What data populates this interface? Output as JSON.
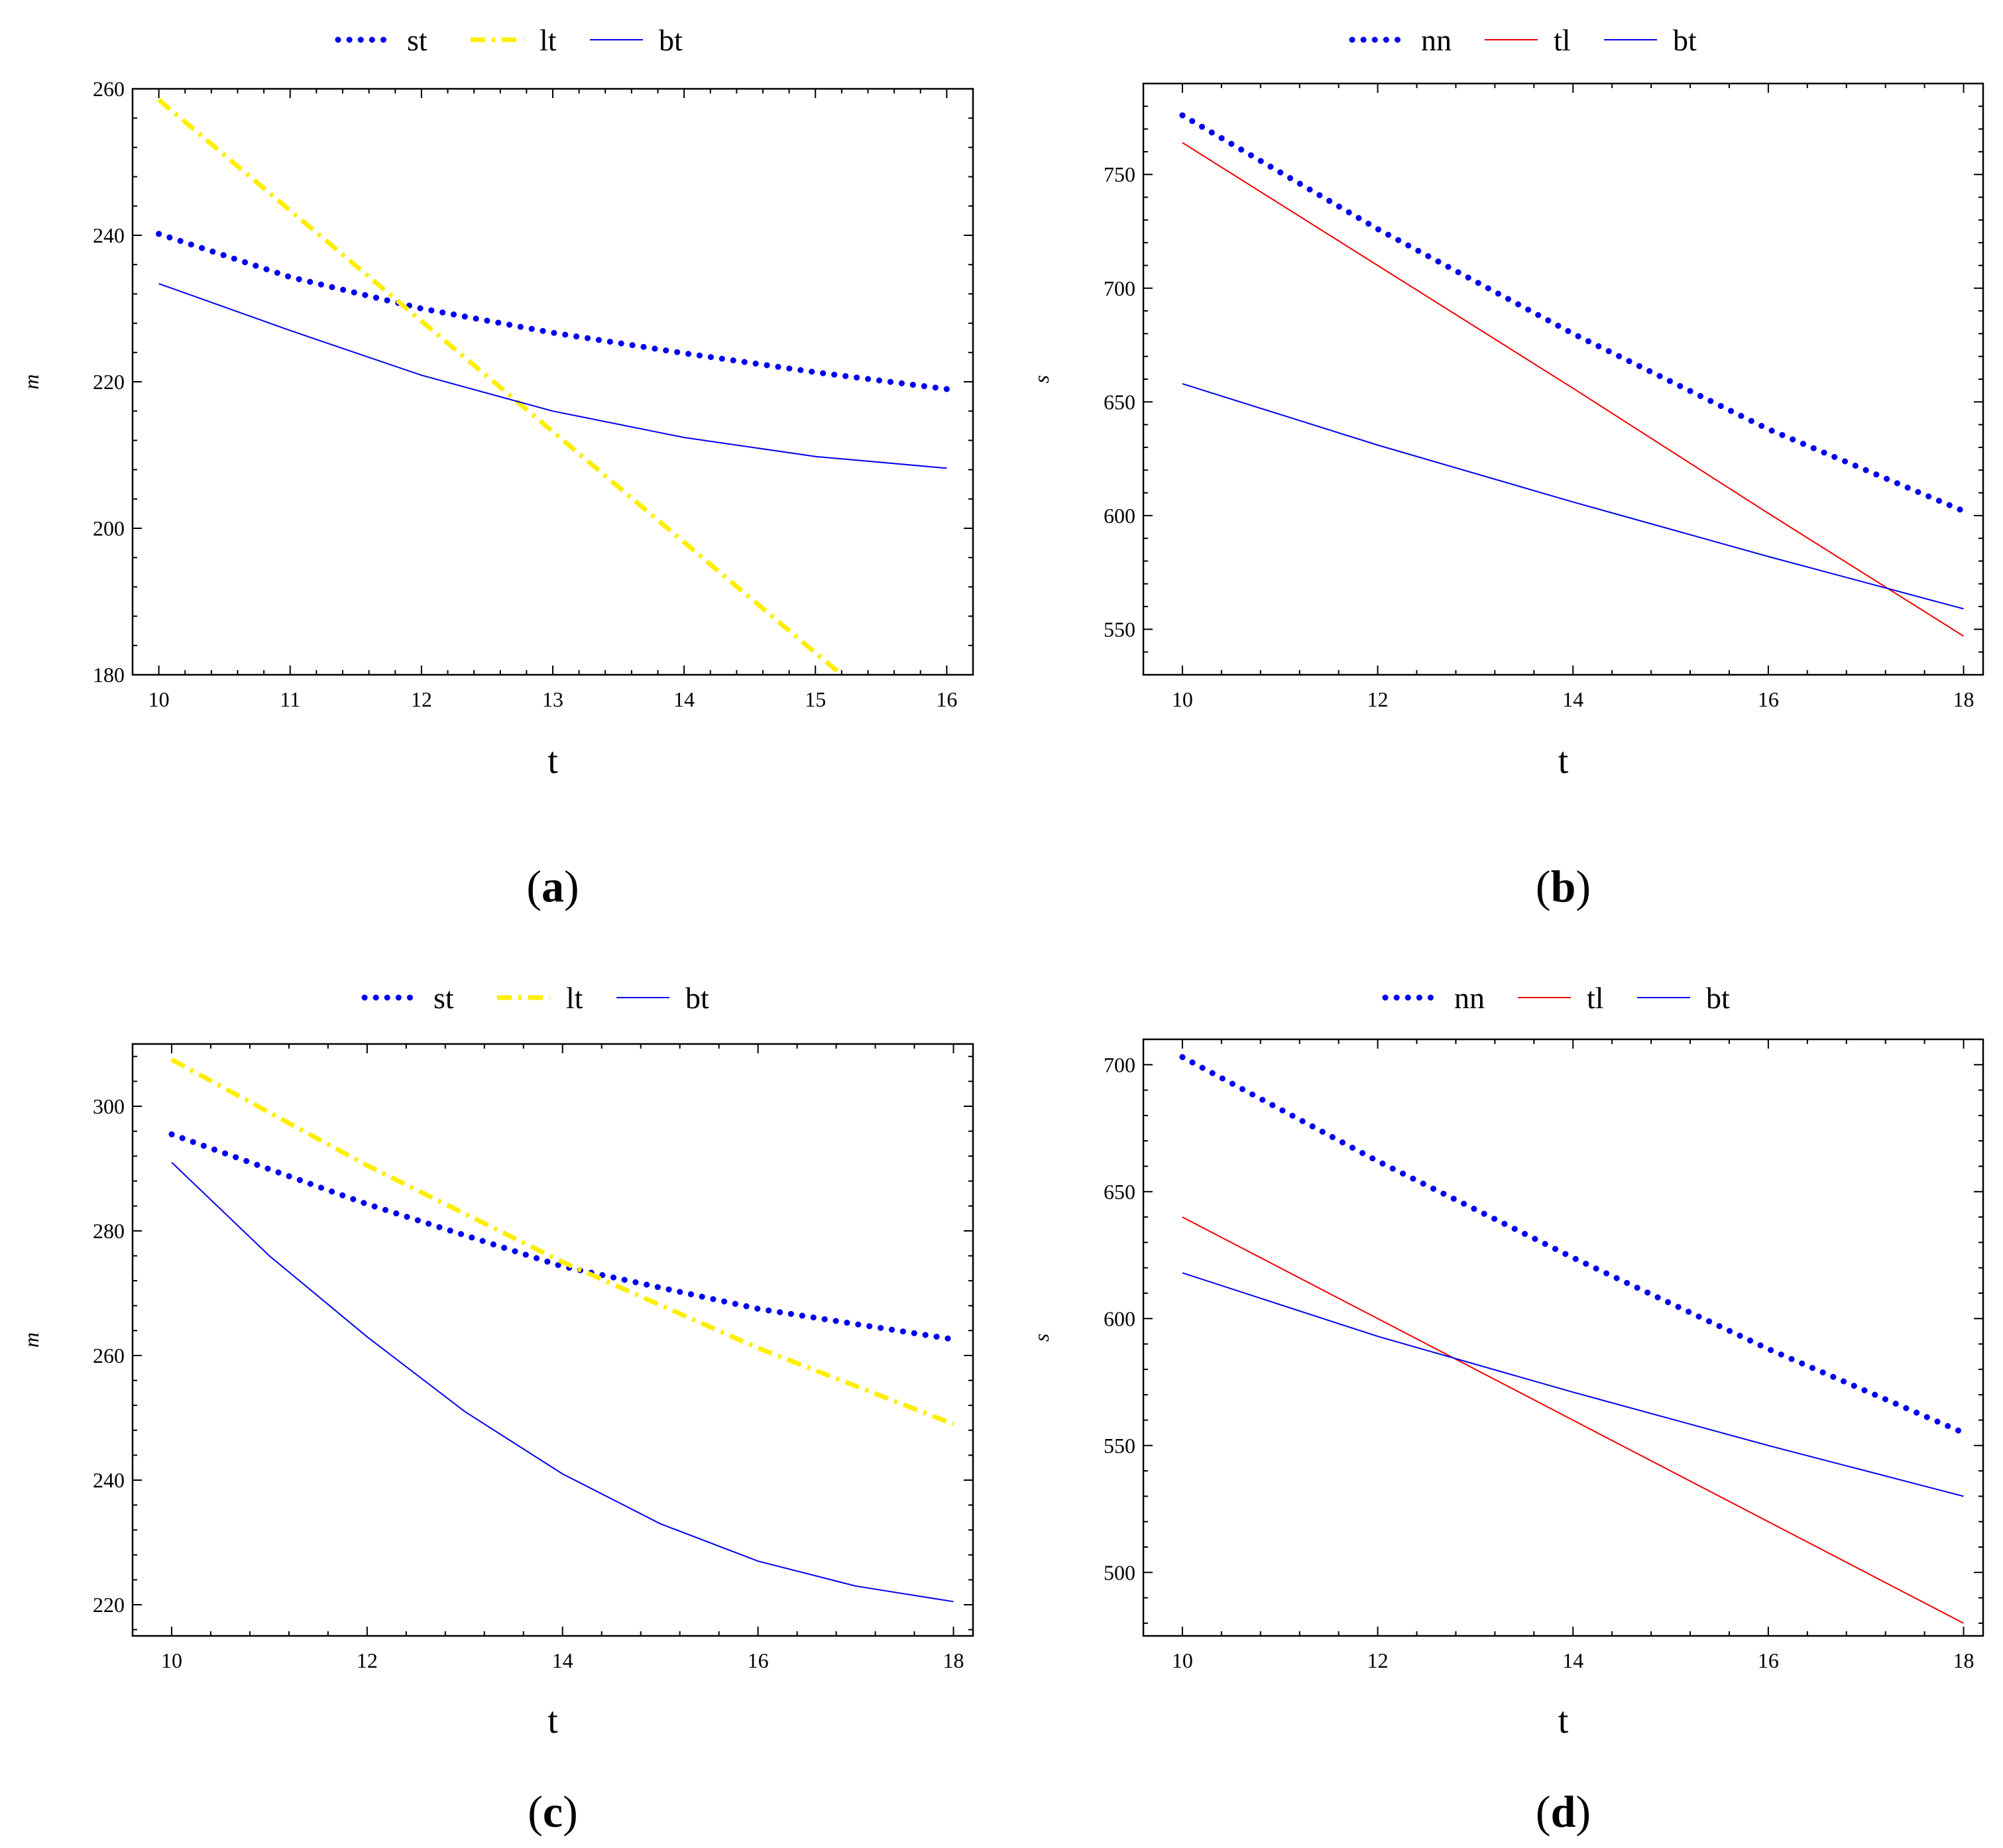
{
  "figure": {
    "panels": [
      {
        "id": "a",
        "caption_letter": "a",
        "xlabel": "t",
        "ylabel": "m",
        "xlim": [
          9.8,
          16.2
        ],
        "ylim": [
          180,
          260
        ],
        "xticks": [
          10,
          11,
          12,
          13,
          14,
          15,
          16
        ],
        "yticks": [
          180,
          200,
          220,
          240,
          260
        ],
        "legend": [
          "st",
          "lt",
          "bt"
        ],
        "series": [
          {
            "name": "st",
            "style": "dotted",
            "color": "#0000ee",
            "x": [
              10,
              11,
              12,
              13,
              14,
              15,
              16
            ],
            "values": [
              240.2,
              234.3,
              230.0,
              226.7,
              223.9,
              221.3,
              219.0
            ]
          },
          {
            "name": "lt",
            "style": "dashdot",
            "color": "#ffee00",
            "x": [
              10,
              11,
              12,
              13,
              14,
              15,
              15.2
            ],
            "values": [
              258.5,
              243.4,
              228.3,
              213.2,
              198.1,
              183.0,
              180.0
            ]
          },
          {
            "name": "bt",
            "style": "solid",
            "color": "#0000ee",
            "x": [
              10,
              11,
              12,
              13,
              14,
              15,
              16
            ],
            "values": [
              233.4,
              227.0,
              220.9,
              216.0,
              212.4,
              209.8,
              208.2
            ]
          }
        ]
      },
      {
        "id": "b",
        "caption_letter": "b",
        "xlabel": "t",
        "ylabel": "s",
        "xlim": [
          9.6,
          18.2
        ],
        "ylim": [
          530,
          790
        ],
        "xticks": [
          10,
          12,
          14,
          16,
          18
        ],
        "yticks": [
          550,
          600,
          650,
          700,
          750
        ],
        "legend": [
          "nn",
          "tl",
          "bt"
        ],
        "series": [
          {
            "name": "nn",
            "style": "dotted",
            "color": "#0000ee",
            "x": [
              10,
              12,
              14,
              16,
              18
            ],
            "values": [
              776,
              726,
              680,
              638,
              602
            ]
          },
          {
            "name": "tl",
            "style": "solid",
            "color": "#ee0000",
            "x": [
              10,
              12,
              14,
              16,
              18
            ],
            "values": [
              764,
              710,
              656,
              601,
              547
            ]
          },
          {
            "name": "bt",
            "style": "solid",
            "color": "#0000ee",
            "x": [
              10,
              12,
              14,
              16,
              18
            ],
            "values": [
              658,
              631,
              606,
              582,
              559
            ]
          }
        ]
      },
      {
        "id": "c",
        "caption_letter": "c",
        "xlabel": "t",
        "ylabel": "m",
        "xlim": [
          9.6,
          18.2
        ],
        "ylim": [
          215,
          310
        ],
        "xticks": [
          10,
          12,
          14,
          16,
          18
        ],
        "yticks": [
          220,
          240,
          260,
          280,
          300
        ],
        "legend": [
          "st",
          "lt",
          "bt"
        ],
        "series": [
          {
            "name": "st",
            "style": "dotted",
            "color": "#0000ee",
            "x": [
              10,
              12,
              14,
              16,
              18
            ],
            "values": [
              295.5,
              284.3,
              274.3,
              267.5,
              262.6
            ]
          },
          {
            "name": "lt",
            "style": "dashdot",
            "color": "#ffee00",
            "x": [
              10,
              12,
              14,
              16,
              18
            ],
            "values": [
              307.5,
              290.5,
              275.0,
              261.2,
              249.0
            ]
          },
          {
            "name": "bt",
            "style": "solid",
            "color": "#0000ee",
            "x": [
              10,
              11,
              12,
              13,
              14,
              15,
              16,
              17,
              18
            ],
            "values": [
              291,
              276,
              263,
              251,
              241,
              233,
              227,
              223,
              220.5
            ]
          }
        ]
      },
      {
        "id": "d",
        "caption_letter": "d",
        "xlabel": "t",
        "ylabel": "s",
        "xlim": [
          9.6,
          18.2
        ],
        "ylim": [
          475,
          710
        ],
        "xticks": [
          10,
          12,
          14,
          16,
          18
        ],
        "yticks": [
          500,
          550,
          600,
          650,
          700
        ],
        "legend": [
          "nn",
          "tl",
          "bt"
        ],
        "series": [
          {
            "name": "nn",
            "style": "dotted",
            "color": "#0000ee",
            "x": [
              10,
              12,
              14,
              16,
              18
            ],
            "values": [
              703,
              662,
              624,
              588,
              555
            ]
          },
          {
            "name": "tl",
            "style": "solid",
            "color": "#ee0000",
            "x": [
              10,
              12,
              14,
              16,
              18
            ],
            "values": [
              640,
              600,
              560,
              520,
              480
            ]
          },
          {
            "name": "bt",
            "style": "solid",
            "color": "#0000ee",
            "x": [
              10,
              12,
              14,
              16,
              18
            ],
            "values": [
              618,
              593,
              571,
              550,
              530
            ]
          }
        ]
      }
    ]
  },
  "chart_data": [
    {
      "type": "line",
      "panel": "a",
      "xlabel": "t",
      "ylabel": "m",
      "ylim": [
        180,
        260
      ],
      "xlim": [
        10,
        16
      ],
      "series": [
        {
          "name": "st",
          "x": [
            10,
            11,
            12,
            13,
            14,
            15,
            16
          ],
          "values": [
            240.2,
            234.3,
            230.0,
            226.7,
            223.9,
            221.3,
            219.0
          ]
        },
        {
          "name": "lt",
          "x": [
            10,
            11,
            12,
            13,
            14,
            15,
            15.2
          ],
          "values": [
            258.5,
            243.4,
            228.3,
            213.2,
            198.1,
            183.0,
            180.0
          ]
        },
        {
          "name": "bt",
          "x": [
            10,
            11,
            12,
            13,
            14,
            15,
            16
          ],
          "values": [
            233.4,
            227.0,
            220.9,
            216.0,
            212.4,
            209.8,
            208.2
          ]
        }
      ]
    },
    {
      "type": "line",
      "panel": "b",
      "xlabel": "t",
      "ylabel": "s",
      "ylim": [
        530,
        790
      ],
      "xlim": [
        10,
        18
      ],
      "series": [
        {
          "name": "nn",
          "x": [
            10,
            12,
            14,
            16,
            18
          ],
          "values": [
            776,
            726,
            680,
            638,
            602
          ]
        },
        {
          "name": "tl",
          "x": [
            10,
            12,
            14,
            16,
            18
          ],
          "values": [
            764,
            710,
            656,
            601,
            547
          ]
        },
        {
          "name": "bt",
          "x": [
            10,
            12,
            14,
            16,
            18
          ],
          "values": [
            658,
            631,
            606,
            582,
            559
          ]
        }
      ]
    },
    {
      "type": "line",
      "panel": "c",
      "xlabel": "t",
      "ylabel": "m",
      "ylim": [
        215,
        310
      ],
      "xlim": [
        10,
        18
      ],
      "series": [
        {
          "name": "st",
          "x": [
            10,
            12,
            14,
            16,
            18
          ],
          "values": [
            295.5,
            284.3,
            274.3,
            267.5,
            262.6
          ]
        },
        {
          "name": "lt",
          "x": [
            10,
            12,
            14,
            16,
            18
          ],
          "values": [
            307.5,
            290.5,
            275.0,
            261.2,
            249.0
          ]
        },
        {
          "name": "bt",
          "x": [
            10,
            11,
            12,
            13,
            14,
            15,
            16,
            17,
            18
          ],
          "values": [
            291,
            276,
            263,
            251,
            241,
            233,
            227,
            223,
            220.5
          ]
        }
      ]
    },
    {
      "type": "line",
      "panel": "d",
      "xlabel": "t",
      "ylabel": "s",
      "ylim": [
        475,
        710
      ],
      "xlim": [
        10,
        18
      ],
      "series": [
        {
          "name": "nn",
          "x": [
            10,
            12,
            14,
            16,
            18
          ],
          "values": [
            703,
            662,
            624,
            588,
            555
          ]
        },
        {
          "name": "tl",
          "x": [
            10,
            12,
            14,
            16,
            18
          ],
          "values": [
            640,
            600,
            560,
            520,
            480
          ]
        },
        {
          "name": "bt",
          "x": [
            10,
            12,
            14,
            16,
            18
          ],
          "values": [
            618,
            593,
            571,
            550,
            530
          ]
        }
      ]
    }
  ]
}
